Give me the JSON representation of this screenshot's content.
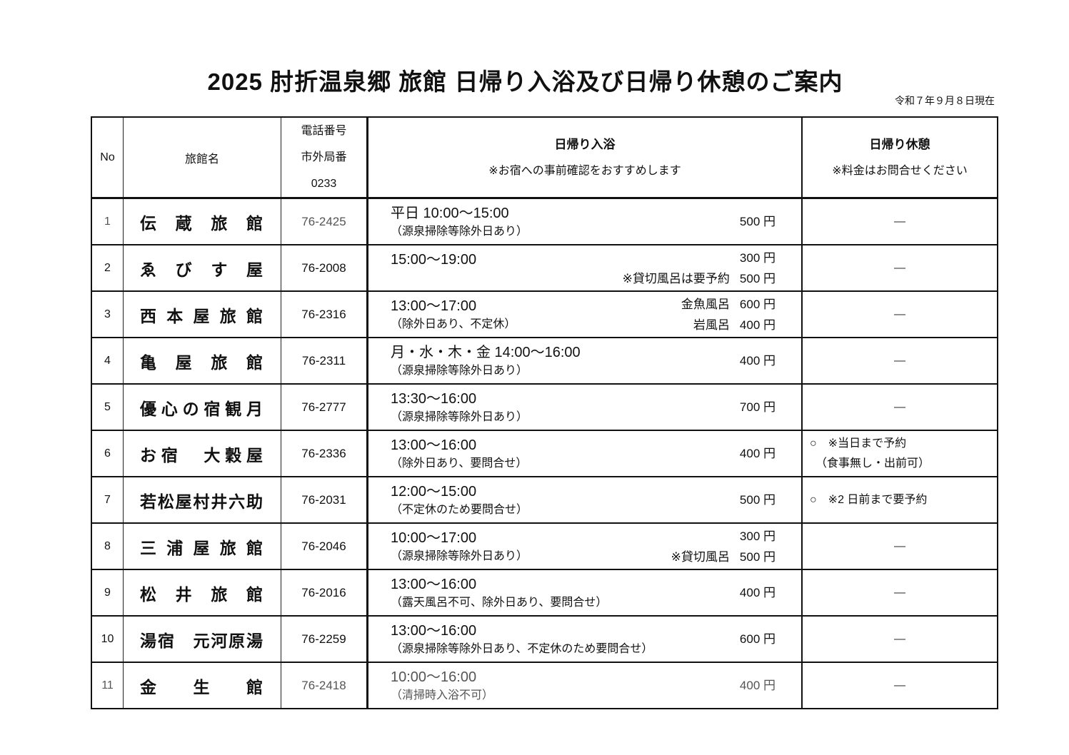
{
  "title": "2025 肘折温泉郷 旅館 日帰り入浴及び日帰り休憩のご案内",
  "as_of": "令和７年９月８日現在",
  "headers": {
    "no": "No",
    "name": "旅館名",
    "tel": [
      "電話番号",
      "市外局番",
      "0233"
    ],
    "bath_title": "日帰り入浴",
    "bath_note": "※お宿への事前確認をおすすめします",
    "rest_title": "日帰り休憩",
    "rest_note": "※料金はお問合せください"
  },
  "rows": [
    {
      "no": "1",
      "name": "伝　蔵　旅　館",
      "tel": "76-2425",
      "time": "平日 10:00～15:00",
      "note": "（源泉掃除等除外日あり）",
      "prices": [
        {
          "label": "",
          "price": "500 円"
        }
      ],
      "rest": [
        "—"
      ],
      "muted": true
    },
    {
      "no": "2",
      "name": "ゑ　び　す　屋",
      "tel": "76-2008",
      "time": "15:00～19:00",
      "note": "",
      "prices": [
        {
          "label": "",
          "price": "300 円"
        },
        {
          "label": "※貸切風呂は要予約",
          "price": "500 円"
        }
      ],
      "rest": [
        "—"
      ]
    },
    {
      "no": "3",
      "name": "西本屋旅館",
      "tel": "76-2316",
      "time": "13:00～17:00",
      "note": "（除外日あり、不定休）",
      "prices": [
        {
          "label": "金魚風呂",
          "price": "600 円"
        },
        {
          "label": "岩風呂",
          "price": "400 円"
        }
      ],
      "rest": [
        "—"
      ]
    },
    {
      "no": "4",
      "name": "亀　屋　旅　館",
      "tel": "76-2311",
      "time": "月・水・木・金 14:00～16:00",
      "note": "（源泉掃除等除外日あり）",
      "prices": [
        {
          "label": "",
          "price": "400 円"
        }
      ],
      "rest": [
        "—"
      ]
    },
    {
      "no": "5",
      "name": "優心の宿観月",
      "tel": "76-2777",
      "time": "13:30～16:00",
      "note": "（源泉掃除等除外日あり）",
      "prices": [
        {
          "label": "",
          "price": "700 円"
        }
      ],
      "rest": [
        "—"
      ]
    },
    {
      "no": "6",
      "name": "お宿　大穀屋",
      "tel": "76-2336",
      "time": "13:00～16:00",
      "note": "（除外日あり、要問合せ）",
      "prices": [
        {
          "label": "",
          "price": "400 円"
        }
      ],
      "rest": [
        "○　※当日まで予約",
        "　（食事無し・出前可）"
      ]
    },
    {
      "no": "7",
      "name": "若松屋村井六助",
      "tel": "76-2031",
      "time": "12:00～15:00",
      "note": "（不定休のため要問合せ）",
      "prices": [
        {
          "label": "",
          "price": "500 円"
        }
      ],
      "rest": [
        "○　※2 日前まで要予約"
      ]
    },
    {
      "no": "8",
      "name": "三浦屋旅館",
      "tel": "76-2046",
      "time": "10:00～17:00",
      "note": "（源泉掃除等除外日あり）",
      "prices": [
        {
          "label": "",
          "price": "300 円"
        },
        {
          "label": "※貸切風呂",
          "price": "500 円"
        }
      ],
      "rest": [
        "—"
      ]
    },
    {
      "no": "9",
      "name": "松　井　旅　館",
      "tel": "76-2016",
      "time": "13:00～16:00",
      "note": "（露天風呂不可、除外日あり、要問合せ）",
      "prices": [
        {
          "label": "",
          "price": "400 円"
        }
      ],
      "rest": [
        "—"
      ]
    },
    {
      "no": "10",
      "name": "湯宿　元河原湯",
      "tel": "76-2259",
      "time": "13:00～16:00",
      "note": "（源泉掃除等除外日あり、不定休のため要問合せ）",
      "prices": [
        {
          "label": "",
          "price": "600 円"
        }
      ],
      "rest": [
        "—"
      ]
    },
    {
      "no": "11",
      "name": "金　　生　　館",
      "tel": "76-2418",
      "time": "10:00～16:00",
      "note": "（清掃時入浴不可）",
      "prices": [
        {
          "label": "",
          "price": "400 円"
        }
      ],
      "rest": [
        "—"
      ],
      "muted": true
    }
  ]
}
